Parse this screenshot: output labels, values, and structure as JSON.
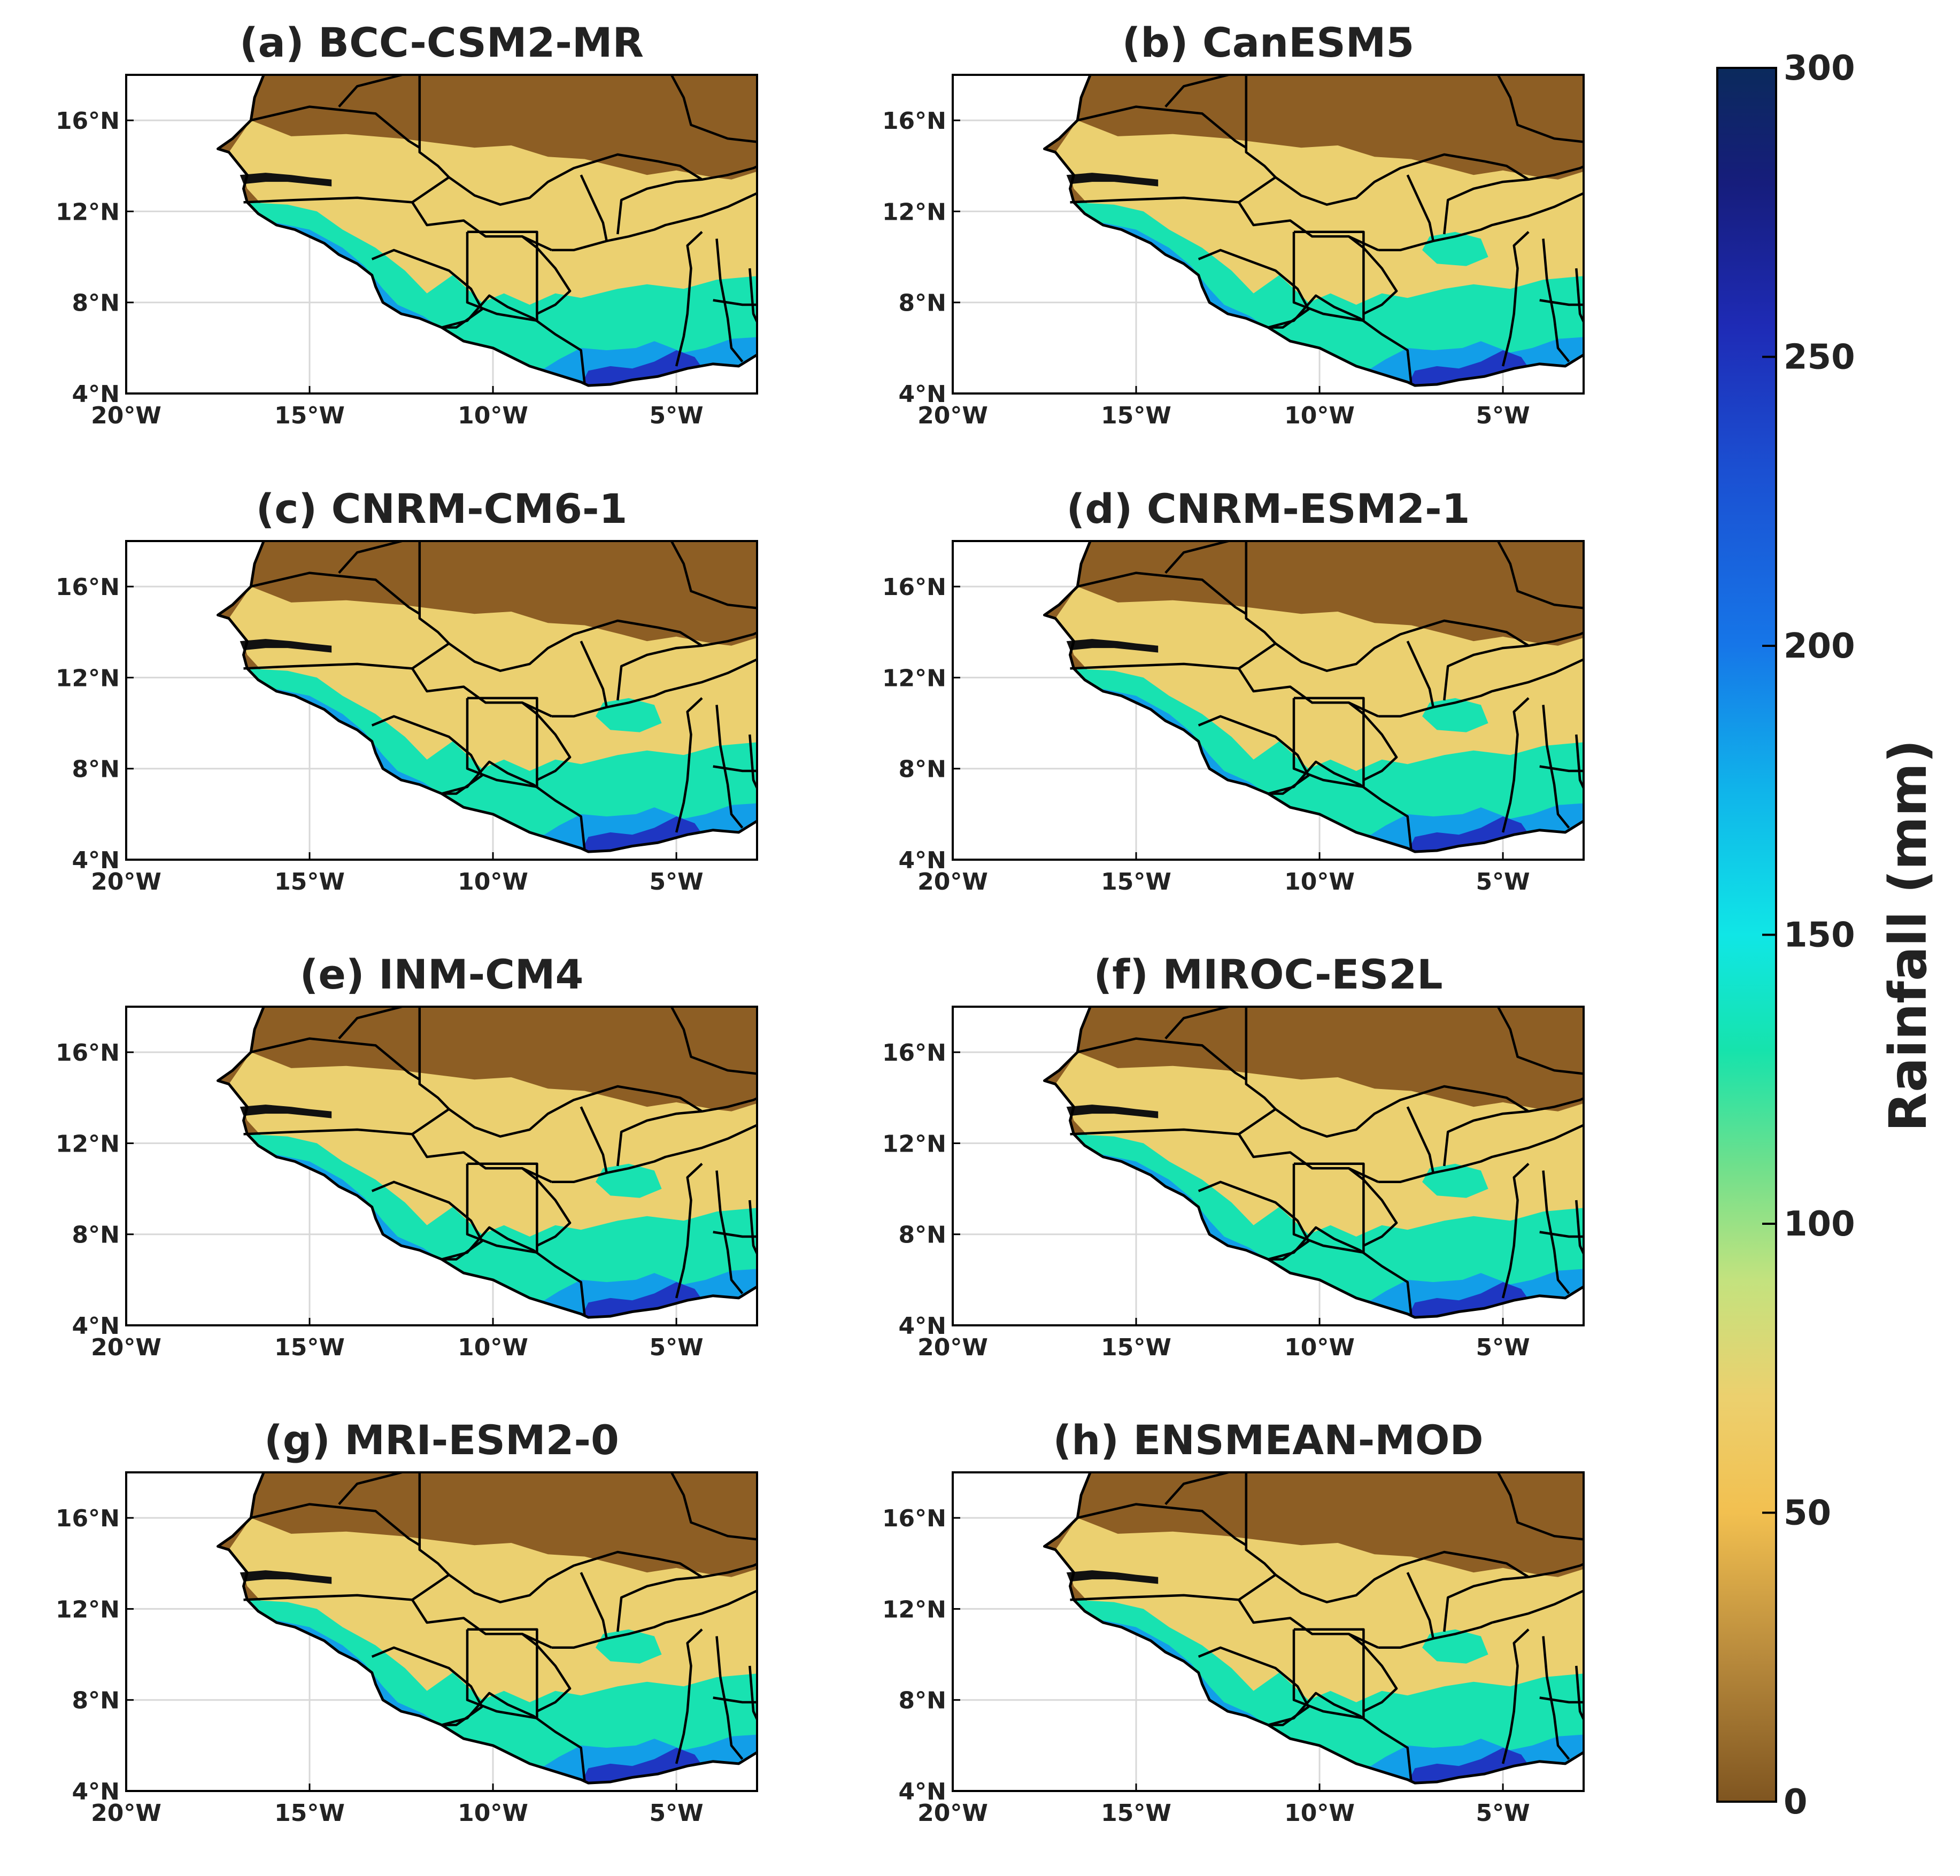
{
  "panels": [
    {
      "title": "(a) BCC-CSM2-MR",
      "variant": "a"
    },
    {
      "title": "(b) CanESM5",
      "variant": "b"
    },
    {
      "title": "(c) CNRM-CM6-1",
      "variant": "c"
    },
    {
      "title": "(d) CNRM-ESM2-1",
      "variant": "d"
    },
    {
      "title": "(e) INM-CM4",
      "variant": "e"
    },
    {
      "title": "(f) MIROC-ES2L",
      "variant": "f"
    },
    {
      "title": "(g) MRI-ESM2-0",
      "variant": "g"
    },
    {
      "title": "(h) ENSMEAN-MOD",
      "variant": "h"
    }
  ],
  "map_extent": {
    "lon_min": -20,
    "lon_max": -2.8,
    "lat_min": 4,
    "lat_max": 18
  },
  "lat_ticks": [
    {
      "value": 16,
      "label": "16°N"
    },
    {
      "value": 12,
      "label": "12°N"
    },
    {
      "value": 8,
      "label": "8°N"
    },
    {
      "value": 4,
      "label": "4°N"
    }
  ],
  "lon_ticks": [
    {
      "value": -20,
      "label": "20°W"
    },
    {
      "value": -15,
      "label": "15°W"
    },
    {
      "value": -10,
      "label": "10°W"
    },
    {
      "value": -5,
      "label": "5°W"
    }
  ],
  "colorbar": {
    "label": "Rainfall (mm)",
    "min": 0,
    "max": 300,
    "ticks": [
      {
        "value": 300,
        "label": "300"
      },
      {
        "value": 250,
        "label": "250"
      },
      {
        "value": 200,
        "label": "200"
      },
      {
        "value": 150,
        "label": "150"
      },
      {
        "value": 100,
        "label": "100"
      },
      {
        "value": 50,
        "label": "50"
      },
      {
        "value": 0,
        "label": "0"
      }
    ],
    "stops": [
      {
        "value": 0,
        "color": "#7f5520"
      },
      {
        "value": 25,
        "color": "#b88a3c"
      },
      {
        "value": 50,
        "color": "#f2c050"
      },
      {
        "value": 70,
        "color": "#ecd06e"
      },
      {
        "value": 90,
        "color": "#c4e27e"
      },
      {
        "value": 110,
        "color": "#6fe08c"
      },
      {
        "value": 130,
        "color": "#16e3ac"
      },
      {
        "value": 150,
        "color": "#10e6e6"
      },
      {
        "value": 175,
        "color": "#10b4ea"
      },
      {
        "value": 200,
        "color": "#1676e8"
      },
      {
        "value": 230,
        "color": "#1b50d2"
      },
      {
        "value": 255,
        "color": "#1e2bb6"
      },
      {
        "value": 280,
        "color": "#161d7c"
      },
      {
        "value": 300,
        "color": "#0b2a5c"
      }
    ]
  },
  "colors": {
    "sahel_dry": "#8d5e24",
    "semi_arid": "#ebd070",
    "humid": "#18e2b1",
    "wet": "#129ee8",
    "very_wet": "#1e36c2",
    "ocean": "#ffffff",
    "border": "#000000",
    "grid": "#d8d8d8"
  }
}
